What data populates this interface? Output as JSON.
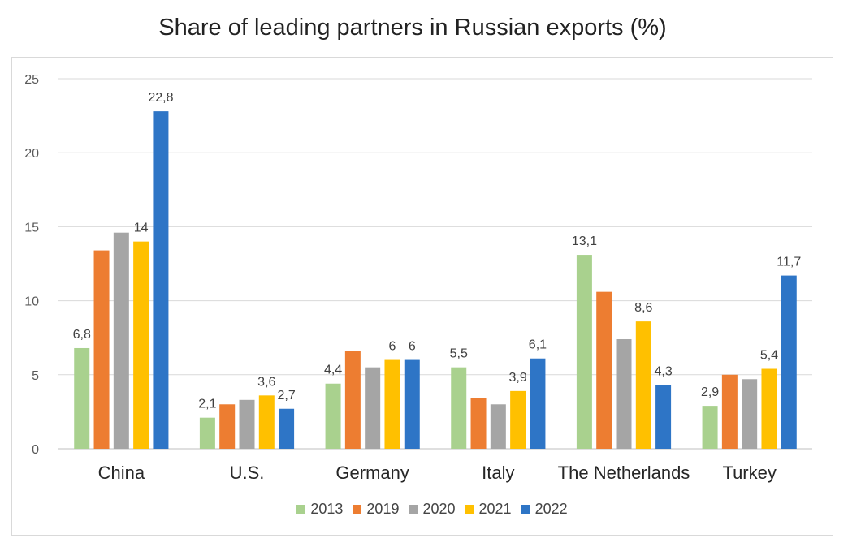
{
  "chart_data": {
    "type": "bar",
    "title": "Share of leading partners in Russian exports (%)",
    "categories": [
      "China",
      "U.S.",
      "Germany",
      "Italy",
      "The Netherlands",
      "Turkey"
    ],
    "series": [
      {
        "name": "2013",
        "color": "#a9d18e",
        "values": [
          6.8,
          2.1,
          4.4,
          5.5,
          13.1,
          2.9
        ]
      },
      {
        "name": "2019",
        "color": "#ed7d31",
        "values": [
          13.4,
          3.0,
          6.6,
          3.4,
          10.6,
          5.0
        ]
      },
      {
        "name": "2020",
        "color": "#a5a5a5",
        "values": [
          14.6,
          3.3,
          5.5,
          3.0,
          7.4,
          4.7
        ]
      },
      {
        "name": "2021",
        "color": "#ffc000",
        "values": [
          14,
          3.6,
          6,
          3.9,
          8.6,
          5.4
        ]
      },
      {
        "name": "2022",
        "color": "#2e75c6",
        "values": [
          22.8,
          2.7,
          6,
          6.1,
          4.3,
          11.7
        ]
      }
    ],
    "data_labels": [
      {
        "category": 0,
        "series": 0,
        "text": "6,8"
      },
      {
        "category": 0,
        "series": 3,
        "text": "14"
      },
      {
        "category": 0,
        "series": 4,
        "text": "22,8"
      },
      {
        "category": 1,
        "series": 0,
        "text": "2,1"
      },
      {
        "category": 1,
        "series": 3,
        "text": "3,6"
      },
      {
        "category": 1,
        "series": 4,
        "text": "2,7"
      },
      {
        "category": 2,
        "series": 0,
        "text": "4,4"
      },
      {
        "category": 2,
        "series": 3,
        "text": "6"
      },
      {
        "category": 2,
        "series": 4,
        "text": "6"
      },
      {
        "category": 3,
        "series": 0,
        "text": "5,5"
      },
      {
        "category": 3,
        "series": 3,
        "text": "3,9"
      },
      {
        "category": 3,
        "series": 4,
        "text": "6,1"
      },
      {
        "category": 4,
        "series": 0,
        "text": "13,1"
      },
      {
        "category": 4,
        "series": 3,
        "text": "8,6"
      },
      {
        "category": 4,
        "series": 4,
        "text": "4,3"
      },
      {
        "category": 5,
        "series": 0,
        "text": "2,9"
      },
      {
        "category": 5,
        "series": 3,
        "text": "5,4"
      },
      {
        "category": 5,
        "series": 4,
        "text": "11,7"
      }
    ],
    "ylim": [
      0,
      25
    ],
    "yticks": [
      0,
      5,
      10,
      15,
      20,
      25
    ],
    "xlabel": "",
    "ylabel": "",
    "grid": true,
    "legend_position": "bottom"
  }
}
